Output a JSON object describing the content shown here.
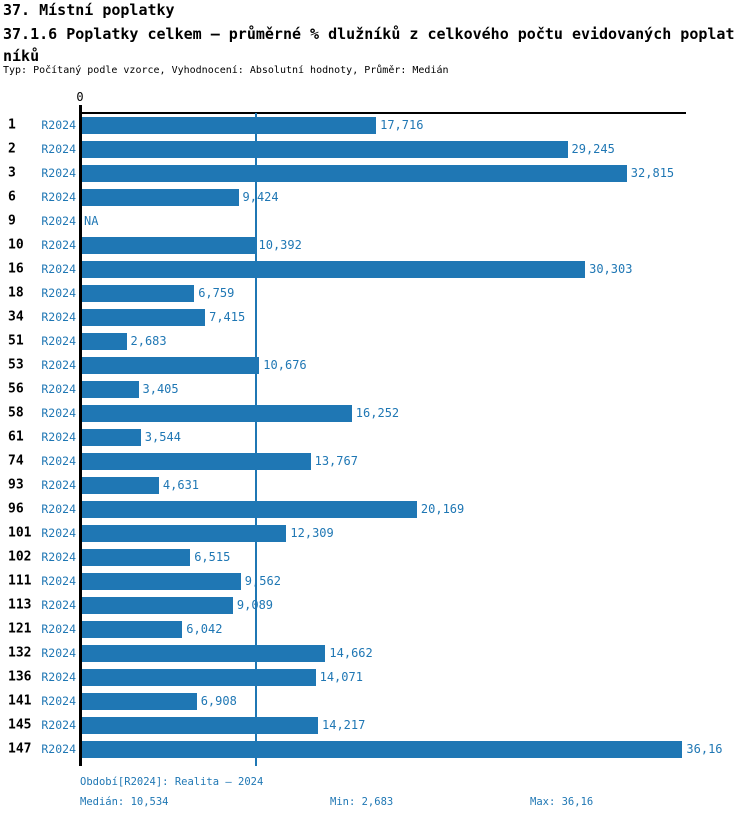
{
  "header": {
    "section_title": "37. Místní poplatky",
    "title": "37.1.6 Poplatky celkem – průměrné % dlužníků z celkového počtu evidovaných poplatníků",
    "meta": "Typ: Počítaný podle vzorce, Vyhodnocení: Absolutní hodnoty, Průměr: Medián"
  },
  "colors": {
    "bar": "#1f77b4",
    "blue_text": "#1f77b4",
    "axis": "#000000"
  },
  "chart_data": {
    "type": "bar",
    "orientation": "horizontal",
    "title": "37.1.6 Poplatky celkem – průměrné % dlužníků z celkového počtu evidovaných poplatníků",
    "xlabel": "",
    "ylabel": "",
    "xlim": [
      0,
      36.5
    ],
    "zero_tick_label": "0",
    "grid": false,
    "median_value": 10.534,
    "legend_position": "none",
    "categories": [
      "1",
      "2",
      "3",
      "6",
      "9",
      "10",
      "16",
      "18",
      "34",
      "51",
      "53",
      "56",
      "58",
      "61",
      "74",
      "93",
      "96",
      "101",
      "102",
      "111",
      "113",
      "121",
      "132",
      "136",
      "141",
      "145",
      "147"
    ],
    "series_period": "R2024",
    "rows": [
      {
        "id": "1",
        "period": "R2024",
        "value": 17.716,
        "label": "17,716"
      },
      {
        "id": "2",
        "period": "R2024",
        "value": 29.245,
        "label": "29,245"
      },
      {
        "id": "3",
        "period": "R2024",
        "value": 32.815,
        "label": "32,815"
      },
      {
        "id": "6",
        "period": "R2024",
        "value": 9.424,
        "label": "9,424"
      },
      {
        "id": "9",
        "period": "R2024",
        "value": null,
        "label": "NA"
      },
      {
        "id": "10",
        "period": "R2024",
        "value": 10.392,
        "label": "10,392"
      },
      {
        "id": "16",
        "period": "R2024",
        "value": 30.303,
        "label": "30,303"
      },
      {
        "id": "18",
        "period": "R2024",
        "value": 6.759,
        "label": "6,759"
      },
      {
        "id": "34",
        "period": "R2024",
        "value": 7.415,
        "label": "7,415"
      },
      {
        "id": "51",
        "period": "R2024",
        "value": 2.683,
        "label": "2,683"
      },
      {
        "id": "53",
        "period": "R2024",
        "value": 10.676,
        "label": "10,676"
      },
      {
        "id": "56",
        "period": "R2024",
        "value": 3.405,
        "label": "3,405"
      },
      {
        "id": "58",
        "period": "R2024",
        "value": 16.252,
        "label": "16,252"
      },
      {
        "id": "61",
        "period": "R2024",
        "value": 3.544,
        "label": "3,544"
      },
      {
        "id": "74",
        "period": "R2024",
        "value": 13.767,
        "label": "13,767"
      },
      {
        "id": "93",
        "period": "R2024",
        "value": 4.631,
        "label": "4,631"
      },
      {
        "id": "96",
        "period": "R2024",
        "value": 20.169,
        "label": "20,169"
      },
      {
        "id": "101",
        "period": "R2024",
        "value": 12.309,
        "label": "12,309"
      },
      {
        "id": "102",
        "period": "R2024",
        "value": 6.515,
        "label": "6,515"
      },
      {
        "id": "111",
        "period": "R2024",
        "value": 9.562,
        "label": "9,562"
      },
      {
        "id": "113",
        "period": "R2024",
        "value": 9.089,
        "label": "9,089"
      },
      {
        "id": "121",
        "period": "R2024",
        "value": 6.042,
        "label": "6,042"
      },
      {
        "id": "132",
        "period": "R2024",
        "value": 14.662,
        "label": "14,662"
      },
      {
        "id": "136",
        "period": "R2024",
        "value": 14.071,
        "label": "14,071"
      },
      {
        "id": "141",
        "period": "R2024",
        "value": 6.908,
        "label": "6,908"
      },
      {
        "id": "145",
        "period": "R2024",
        "value": 14.217,
        "label": "14,217"
      },
      {
        "id": "147",
        "period": "R2024",
        "value": 36.16,
        "label": "36,16"
      }
    ]
  },
  "footer": {
    "period": "Období[R2024]: Realita – 2024",
    "median": "Medián: 10,534",
    "min": "Min: 2,683",
    "max": "Max: 36,16"
  }
}
